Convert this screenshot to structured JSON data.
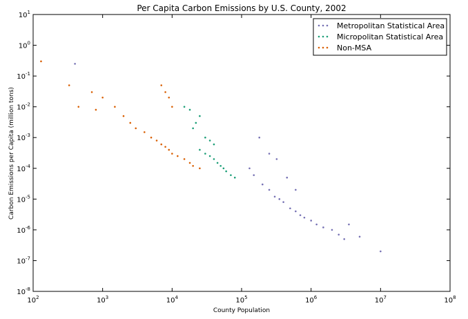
{
  "chart_data": {
    "type": "scatter",
    "title": "Per Capita Carbon Emissions by U.S. County, 2002",
    "xlabel": "County Population",
    "ylabel": "Carbon Emissions per Capita (million tons)",
    "x_scale": "log",
    "y_scale": "log",
    "xlim": [
      100,
      100000000
    ],
    "ylim": [
      1e-08,
      10
    ],
    "x_ticks": [
      {
        "base": "10",
        "exp": "2"
      },
      {
        "base": "10",
        "exp": "3"
      },
      {
        "base": "10",
        "exp": "4"
      },
      {
        "base": "10",
        "exp": "5"
      },
      {
        "base": "10",
        "exp": "6"
      },
      {
        "base": "10",
        "exp": "7"
      },
      {
        "base": "10",
        "exp": "8"
      }
    ],
    "y_ticks": [
      {
        "base": "10",
        "exp": "-8"
      },
      {
        "base": "10",
        "exp": "-7"
      },
      {
        "base": "10",
        "exp": "-6"
      },
      {
        "base": "10",
        "exp": "-5"
      },
      {
        "base": "10",
        "exp": "-4"
      },
      {
        "base": "10",
        "exp": "-3"
      },
      {
        "base": "10",
        "exp": "-2"
      },
      {
        "base": "10",
        "exp": "-1"
      },
      {
        "base": "10",
        "exp": "0"
      },
      {
        "base": "10",
        "exp": "1"
      }
    ],
    "grid": false,
    "legend_position": "top-right",
    "series": [
      {
        "name": "Metropolitan Statistical Area",
        "color": "#7570b3",
        "points": [
          [
            400,
            0.25
          ],
          [
            130000,
            0.0001
          ],
          [
            150000,
            6e-05
          ],
          [
            200000,
            3e-05
          ],
          [
            250000,
            2e-05
          ],
          [
            300000,
            1.2e-05
          ],
          [
            350000,
            1e-05
          ],
          [
            400000,
            8e-06
          ],
          [
            500000,
            5e-06
          ],
          [
            600000,
            4e-06
          ],
          [
            700000,
            3e-06
          ],
          [
            800000,
            2.5e-06
          ],
          [
            1000000,
            2e-06
          ],
          [
            1200000,
            1.5e-06
          ],
          [
            1500000,
            1.2e-06
          ],
          [
            2000000,
            1e-06
          ],
          [
            2500000,
            7e-07
          ],
          [
            3000000,
            5e-07
          ],
          [
            3500000,
            1.5e-06
          ],
          [
            5000000,
            6e-07
          ],
          [
            10000000,
            2e-07
          ],
          [
            180000,
            0.001
          ],
          [
            250000,
            0.0003
          ],
          [
            320000,
            0.0002
          ],
          [
            450000,
            5e-05
          ],
          [
            600000,
            2e-05
          ]
        ]
      },
      {
        "name": "Micropolitan Statistical Area",
        "color": "#1b9e77",
        "points": [
          [
            25000,
            0.0004
          ],
          [
            30000,
            0.0003
          ],
          [
            35000,
            0.00025
          ],
          [
            40000,
            0.0002
          ],
          [
            45000,
            0.00015
          ],
          [
            50000,
            0.00012
          ],
          [
            55000,
            0.0001
          ],
          [
            60000,
            8e-05
          ],
          [
            70000,
            6e-05
          ],
          [
            80000,
            5e-05
          ],
          [
            20000,
            0.002
          ],
          [
            25000,
            0.005
          ],
          [
            30000,
            0.001
          ],
          [
            35000,
            0.0008
          ],
          [
            40000,
            0.0006
          ],
          [
            15000,
            0.01
          ],
          [
            18000,
            0.008
          ],
          [
            22000,
            0.003
          ]
        ]
      },
      {
        "name": "Non-MSA",
        "color": "#d95f02",
        "points": [
          [
            130,
            0.3
          ],
          [
            330,
            0.05
          ],
          [
            450,
            0.01
          ],
          [
            700,
            0.03
          ],
          [
            800,
            0.008
          ],
          [
            1000,
            0.02
          ],
          [
            1500,
            0.01
          ],
          [
            2000,
            0.005
          ],
          [
            2500,
            0.003
          ],
          [
            3000,
            0.002
          ],
          [
            4000,
            0.0015
          ],
          [
            5000,
            0.001
          ],
          [
            6000,
            0.0008
          ],
          [
            7000,
            0.0006
          ],
          [
            8000,
            0.0005
          ],
          [
            9000,
            0.0004
          ],
          [
            10000,
            0.0003
          ],
          [
            12000,
            0.00025
          ],
          [
            15000,
            0.0002
          ],
          [
            18000,
            0.00015
          ],
          [
            20000,
            0.00012
          ],
          [
            25000,
            0.0001
          ],
          [
            7000,
            0.05
          ],
          [
            8000,
            0.03
          ],
          [
            9000,
            0.02
          ],
          [
            10000,
            0.01
          ]
        ]
      }
    ]
  }
}
